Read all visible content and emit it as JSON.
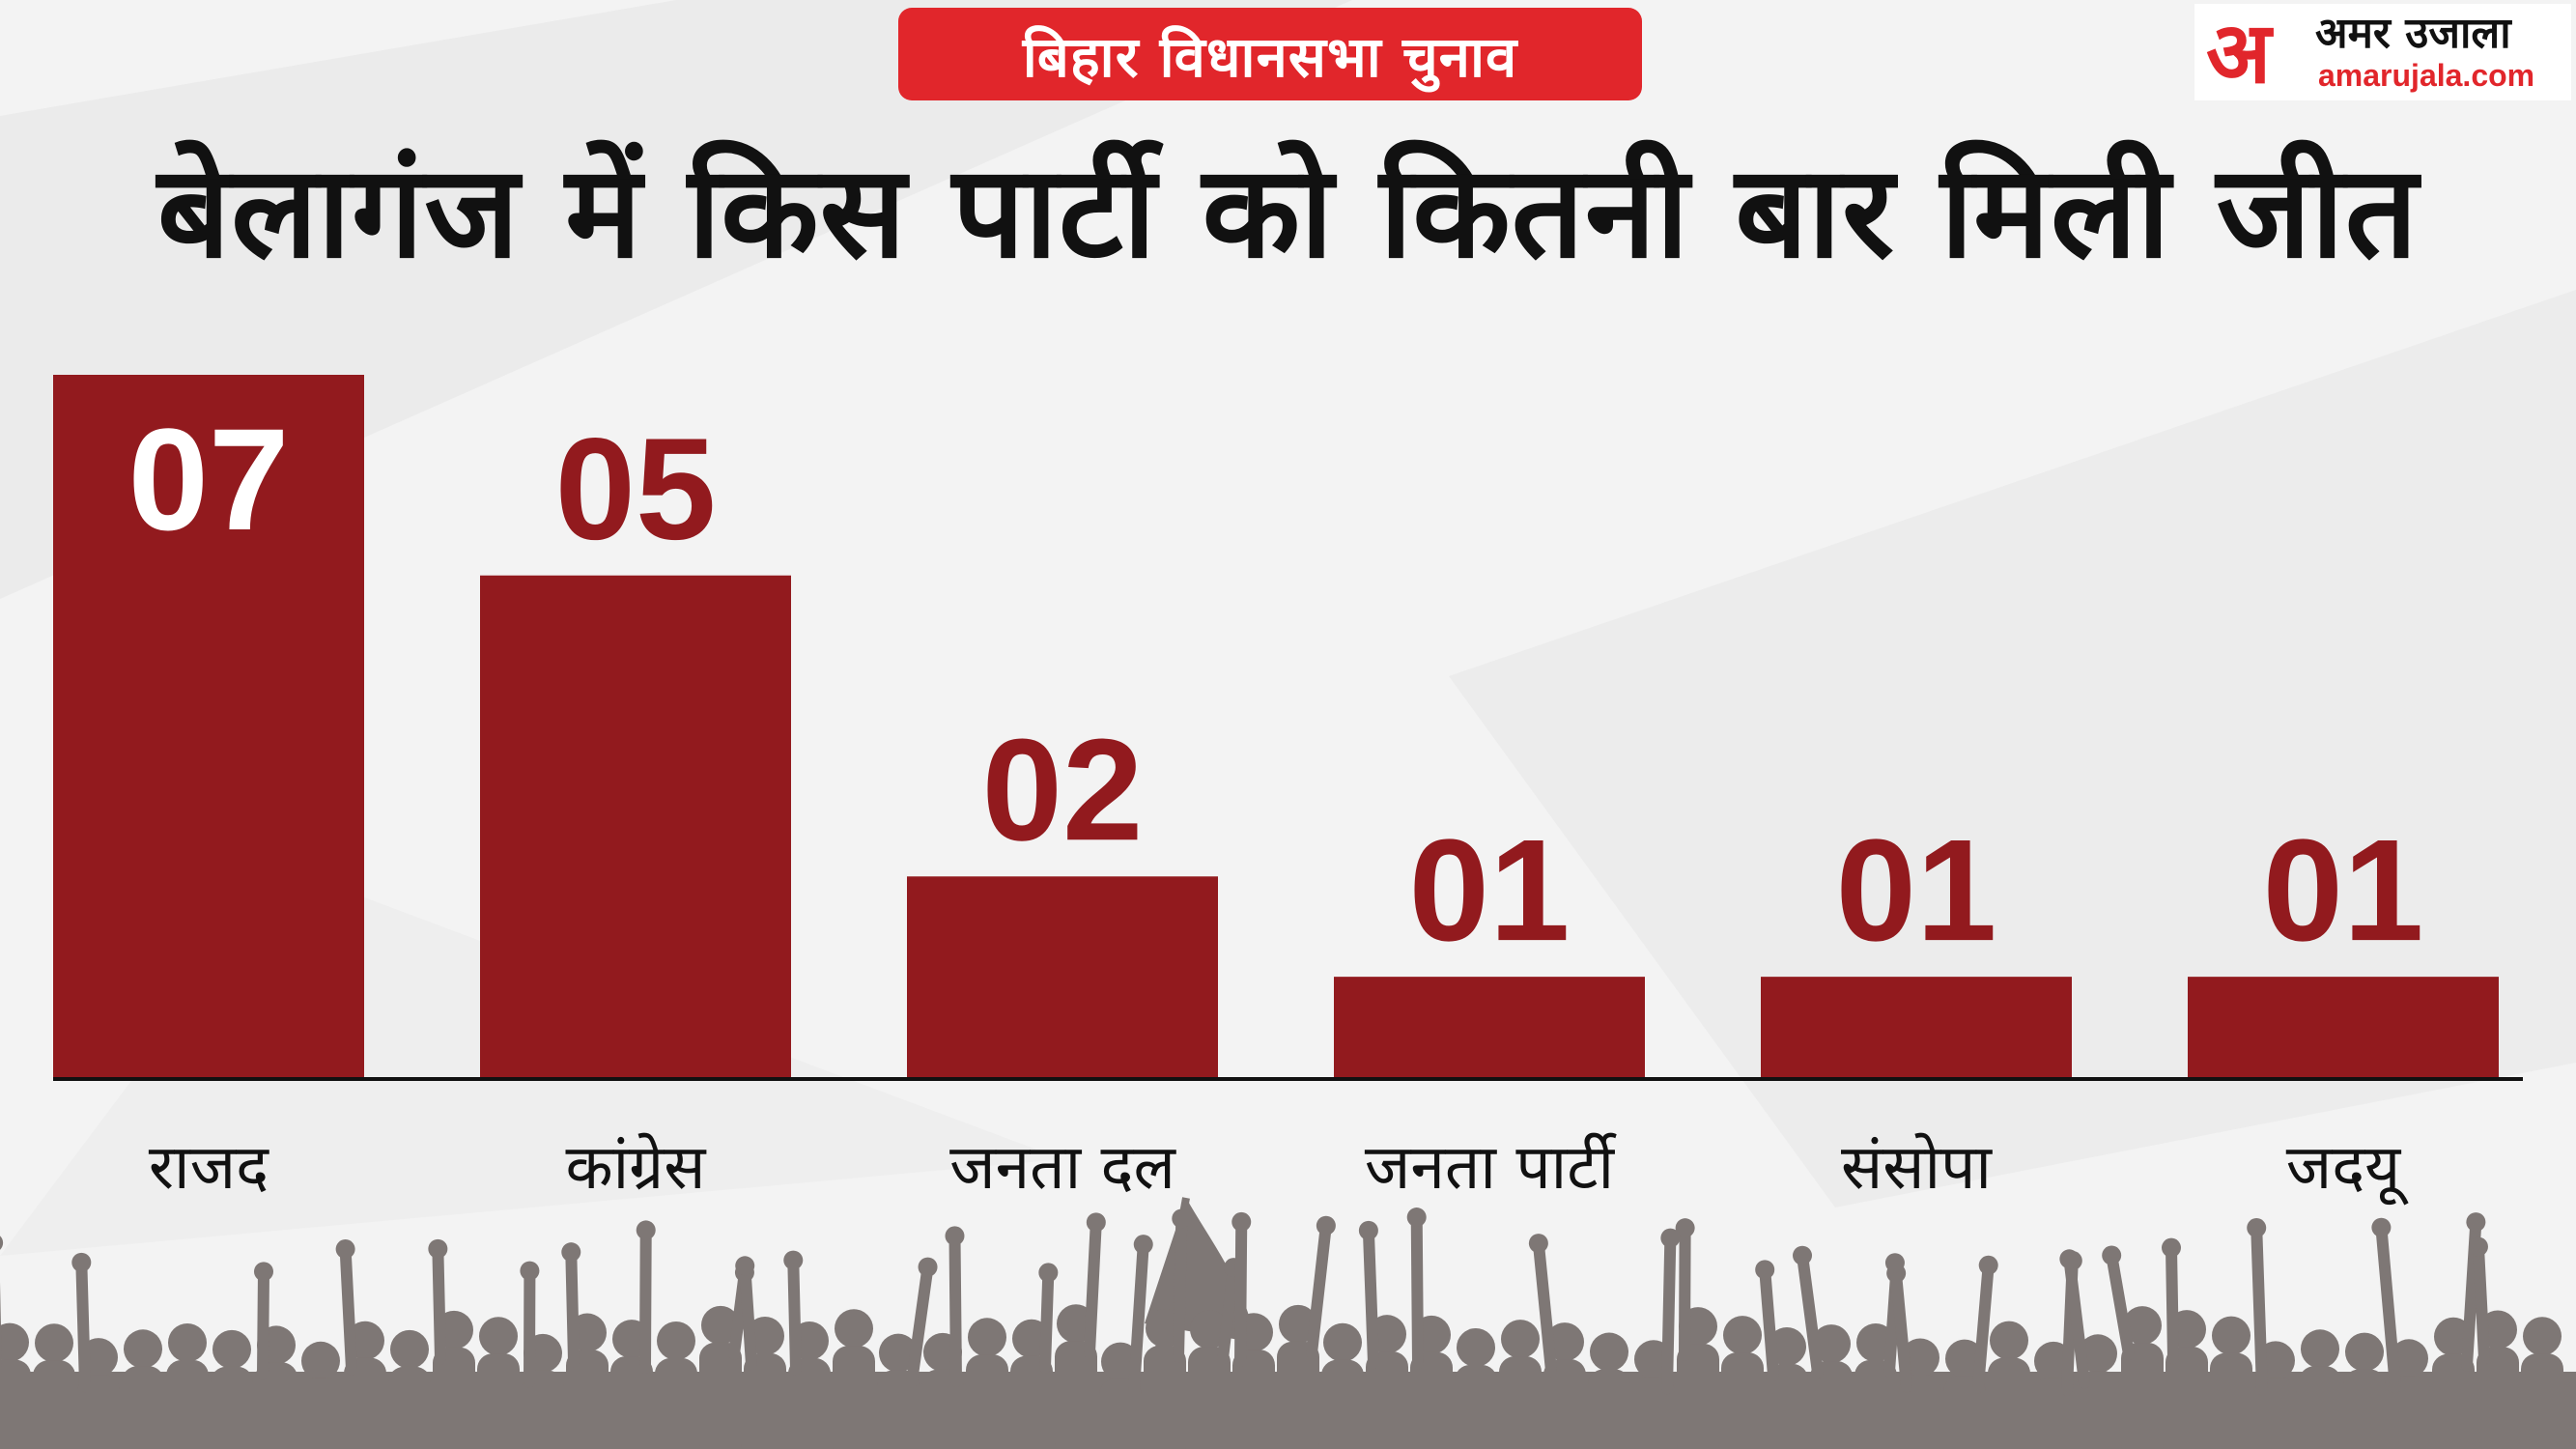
{
  "header": {
    "badge": "बिहार विधानसभा चुनाव",
    "logo_mark": "अ",
    "logo_name": "अमर उजाला",
    "logo_url": "amarujala.com"
  },
  "colors": {
    "bar": "#921a1e",
    "badge": "#e1262b",
    "title": "#111111",
    "crowd": "#7e7775"
  },
  "chart_data": {
    "type": "bar",
    "title": "बेलागंज में किस पार्टी को कितनी बार मिली जीत",
    "categories": [
      "राजद",
      "कांग्रेस",
      "जनता दल",
      "जनता पार्टी",
      "संसोपा",
      "जदयू"
    ],
    "values": [
      7,
      5,
      2,
      1,
      1,
      1
    ],
    "value_labels": [
      "07",
      "05",
      "02",
      "01",
      "01",
      "01"
    ],
    "ylim": [
      0,
      7
    ],
    "grid": false,
    "legend": "none"
  }
}
